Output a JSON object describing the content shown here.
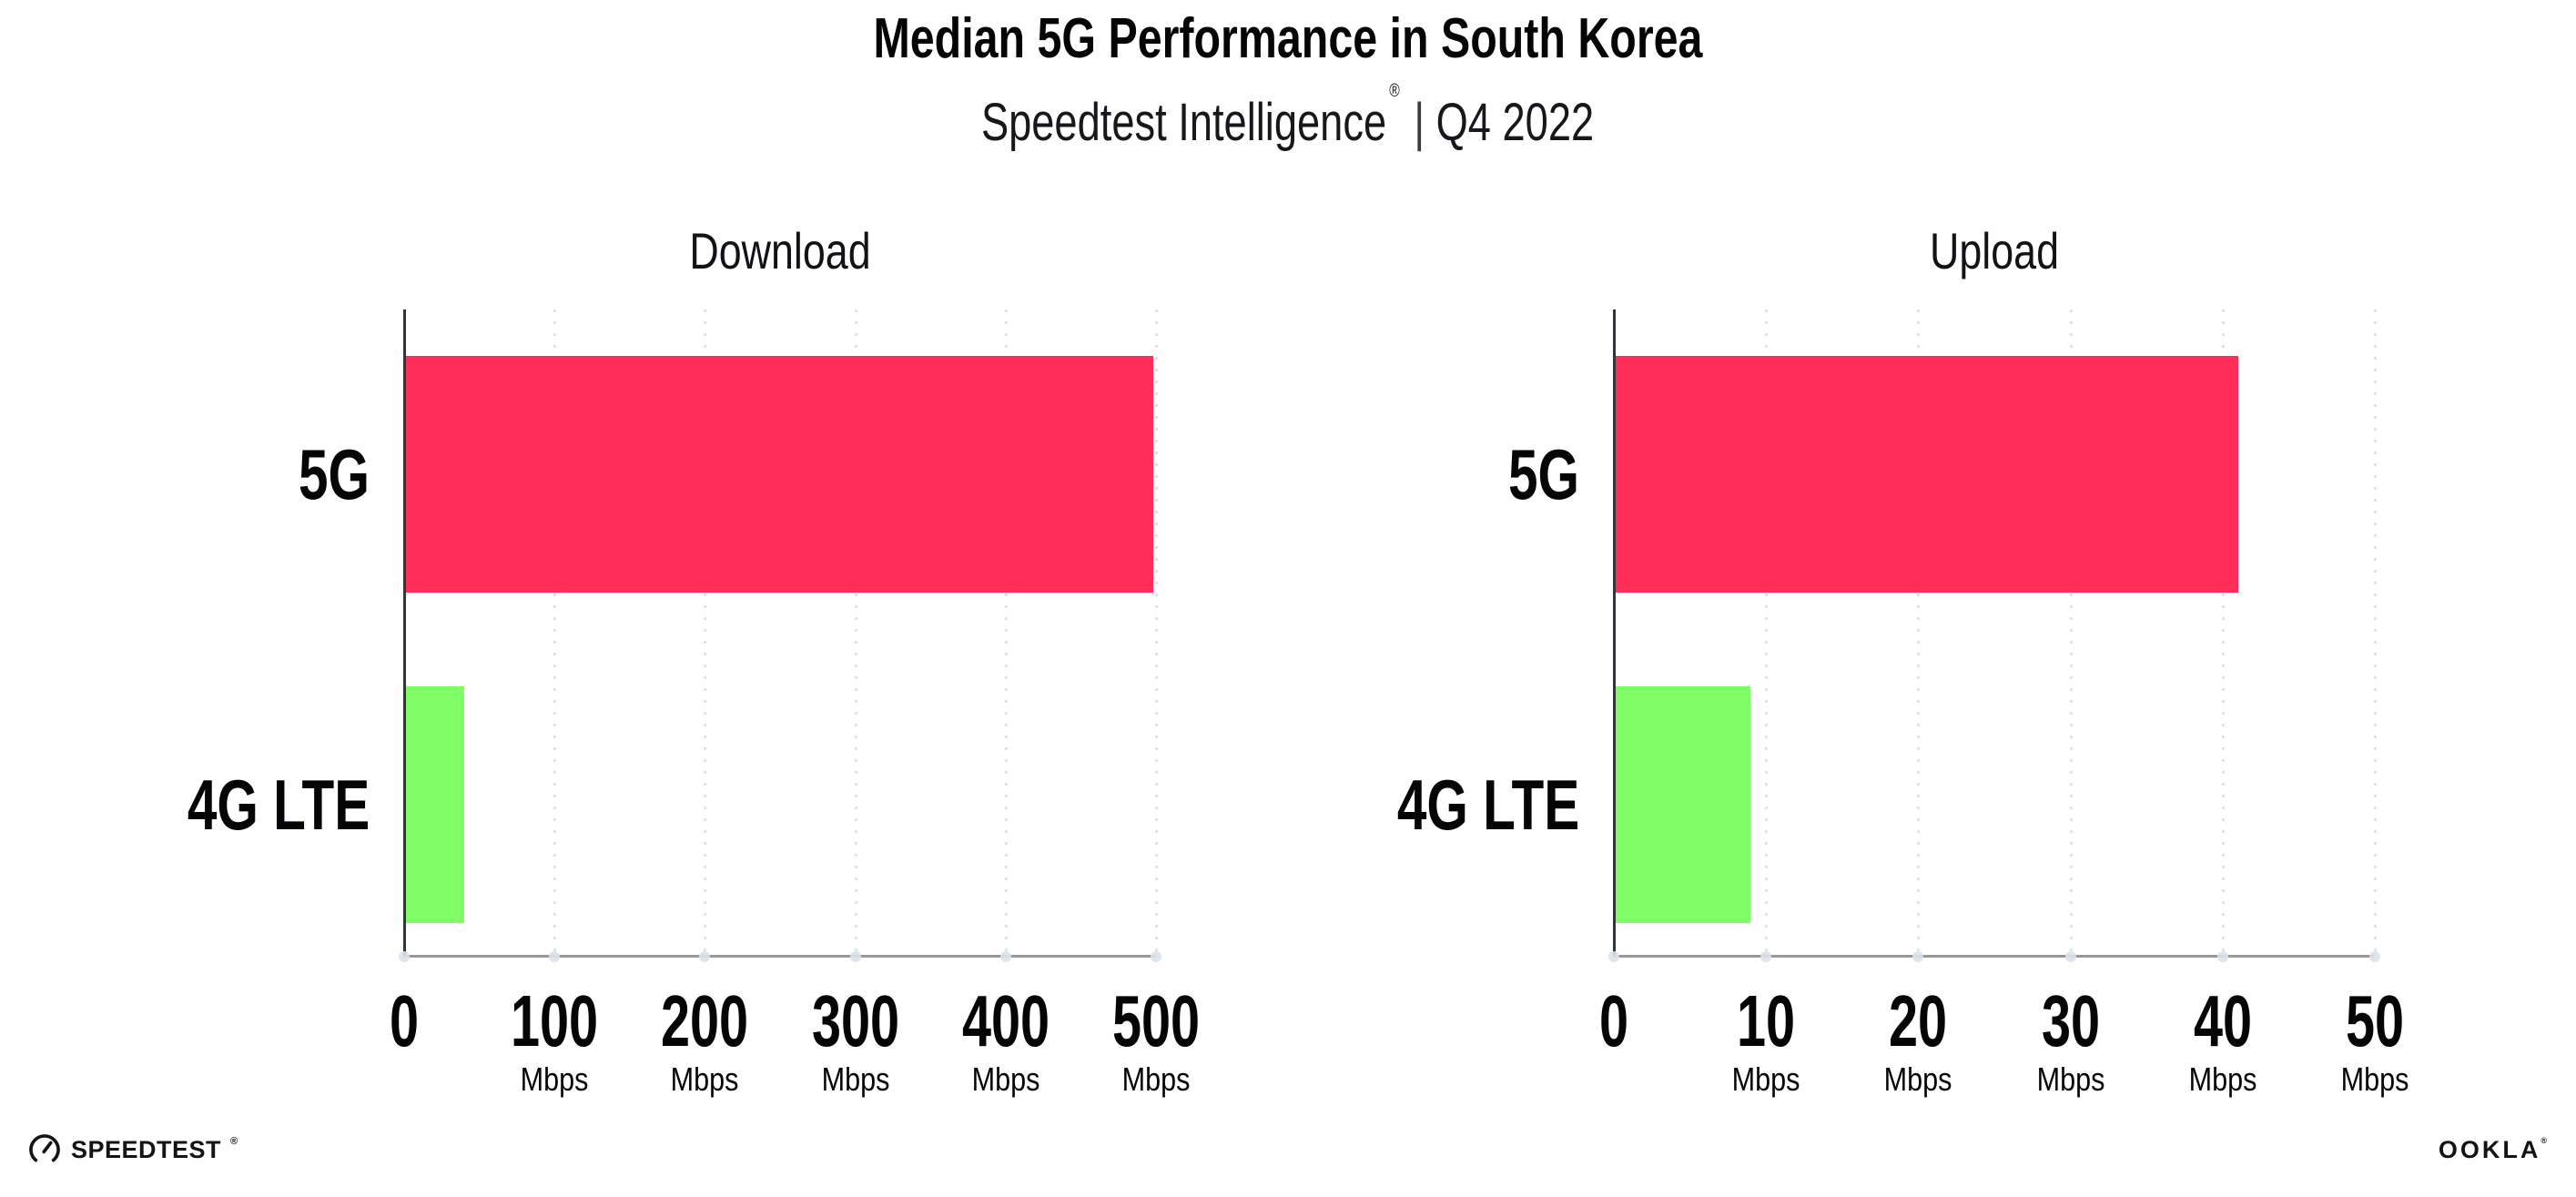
{
  "header": {
    "title": "Median 5G Performance in South Korea",
    "subtitle_brand": "Speedtest Intelligence",
    "subtitle_registered": "®",
    "subtitle_divider": "|",
    "subtitle_period": "Q4 2022"
  },
  "chart_data": [
    {
      "type": "bar",
      "orientation": "horizontal",
      "title": "Download",
      "categories": [
        "5G",
        "4G LTE"
      ],
      "values": [
        498,
        40
      ],
      "units": "Mbps",
      "xlim": [
        0,
        500
      ],
      "xticks": [
        0,
        100,
        200,
        300,
        400,
        500
      ],
      "tick_unit_label": "Mbps",
      "bar_colors": [
        "#FE2D5A",
        "#80FC66"
      ],
      "grid": "dotted-vertical",
      "legend": "none"
    },
    {
      "type": "bar",
      "orientation": "horizontal",
      "title": "Upload",
      "categories": [
        "5G",
        "4G LTE"
      ],
      "values": [
        41,
        9
      ],
      "units": "Mbps",
      "xlim": [
        0,
        50
      ],
      "xticks": [
        0,
        10,
        20,
        30,
        40,
        50
      ],
      "tick_unit_label": "Mbps",
      "bar_colors": [
        "#FE2D5A",
        "#80FC66"
      ],
      "grid": "dotted-vertical",
      "legend": "none"
    }
  ],
  "footer": {
    "speedtest_logo_text": "SPEEDTEST",
    "speedtest_registered": "®",
    "ookla_logo_text": "OOKLA",
    "ookla_registered": "®"
  },
  "colors": {
    "bar_5g": "#FE2D5A",
    "bar_4g_lte": "#80FC66",
    "y_axis": "#33333a",
    "x_axis": "#97979d",
    "gridline": "#e1e1e9",
    "axis_tick_dot": "#dde1ea",
    "text": "#0b0b0b",
    "background": "#ffffff"
  }
}
